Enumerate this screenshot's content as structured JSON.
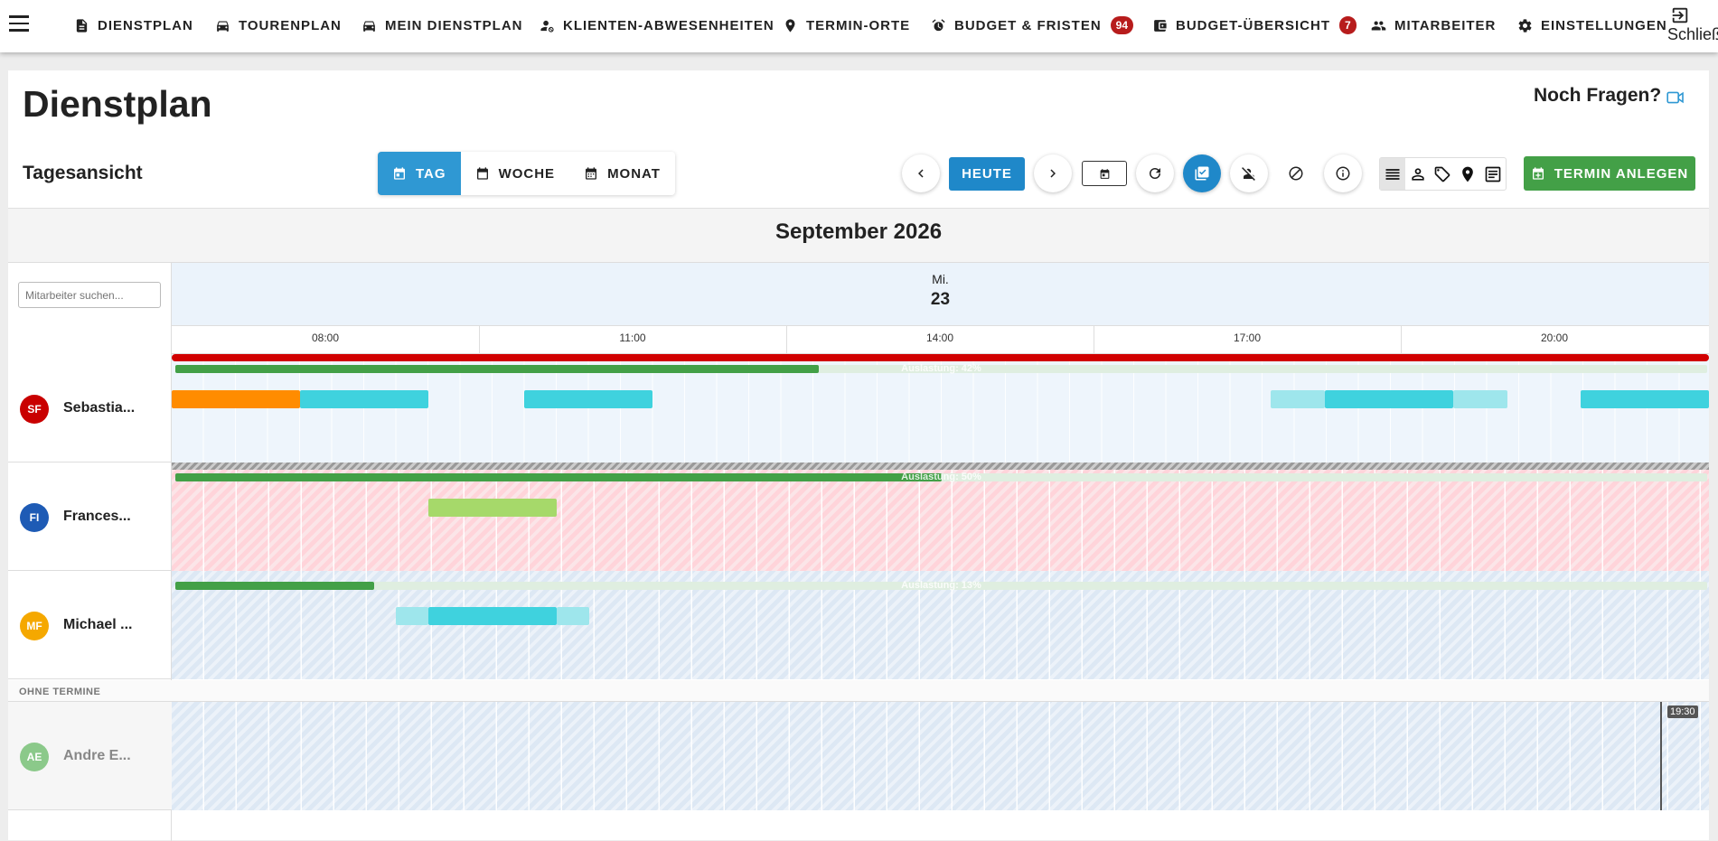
{
  "nav": {
    "items": [
      {
        "label": "DIENSTPLAN",
        "icon": "document-icon"
      },
      {
        "label": "TOURENPLAN",
        "icon": "car-icon"
      },
      {
        "label": "MEIN DIENSTPLAN",
        "icon": "car-icon"
      },
      {
        "label": "KLIENTEN-ABWESENHEITEN",
        "icon": "person-off-icon"
      },
      {
        "label": "TERMIN-ORTE",
        "icon": "location-icon"
      },
      {
        "label": "BUDGET & FRISTEN",
        "icon": "alarm-icon",
        "badge": "94"
      },
      {
        "label": "BUDGET-ÜBERSICHT",
        "icon": "wallet-icon",
        "badge": "7"
      },
      {
        "label": "MITARBEITER",
        "icon": "group-icon"
      },
      {
        "label": "EINSTELLUNGEN",
        "icon": "gear-icon"
      }
    ],
    "close_label": "Schließen"
  },
  "page": {
    "title": "Dienstplan",
    "help": "Noch Fragen?",
    "view_title": "Tagesansicht"
  },
  "view_toggle": {
    "day": "TAG",
    "week": "WOCHE",
    "month": "MONAT",
    "active": "day"
  },
  "toolbar": {
    "today": "HEUTE",
    "create": "TERMIN ANLEGEN"
  },
  "calendar": {
    "month_label": "September 2026",
    "day_of_week": "Mi.",
    "day_number": "23",
    "search_placeholder": "Mitarbeiter suchen...",
    "time_ticks": [
      "08:00",
      "11:00",
      "14:00",
      "17:00",
      "20:00"
    ],
    "section_no_appointments": "OHNE TERMINE",
    "now_label": "19:30"
  },
  "employees": [
    {
      "initials": "SF",
      "name": "Sebastia...",
      "color": "#c90000",
      "utilization": 42,
      "utilization_label": "Auslastung: 42%"
    },
    {
      "initials": "FI",
      "name": "Frances...",
      "color": "#1e5bb5",
      "utilization": 50,
      "utilization_label": "Auslastung: 50%"
    },
    {
      "initials": "MF",
      "name": "Michael ...",
      "color": "#f5a800",
      "utilization": 13,
      "utilization_label": "Auslastung: 13%"
    }
  ],
  "employees_without_appointments": [
    {
      "initials": "AE",
      "name": "Andre E...",
      "color": "#8bc98a"
    }
  ],
  "colors": {
    "primary": "#1f88c9",
    "success": "#43a047",
    "badge": "#b71c1c",
    "event": "#3fd2de"
  }
}
